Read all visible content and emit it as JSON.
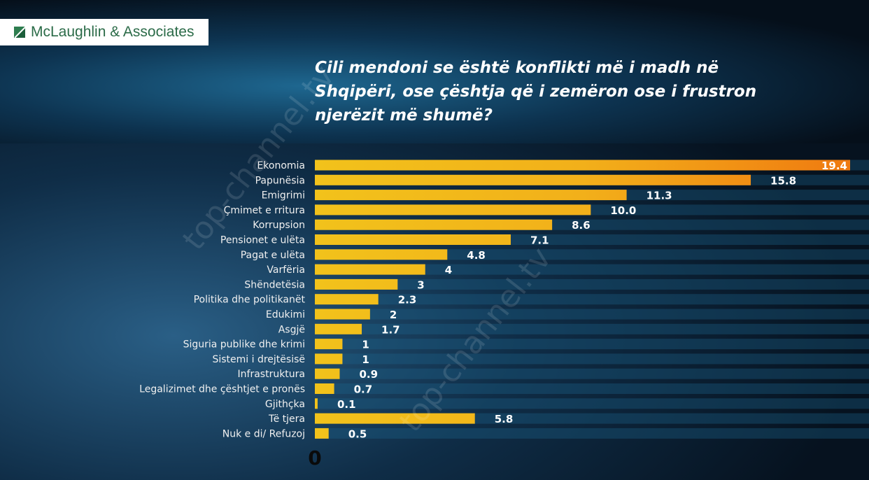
{
  "logo": {
    "text": "McLaughlin & Associates",
    "brand_color": "#2b6b48"
  },
  "title_lines": [
    "Cili mendoni se është konflikti më i madh në",
    "Shqipëri, ose çështja që i zemëron ose i frustron",
    "njerëzit më shumë?"
  ],
  "watermark": "top-channel.tv",
  "chart_data": {
    "type": "bar",
    "orientation": "horizontal",
    "title": "Cili mendoni se është konflikti më i madh në Shqipëri, ose çështja që i zemëron ose i frustron njerëzit më shumë?",
    "categories": [
      "Ekonomia",
      "Papunësia",
      "Emigrimi",
      "Çmimet e rritura",
      "Korrupsion",
      "Pensionet e ulëta",
      "Pagat e ulëta",
      "Varfëria",
      "Shëndetësia",
      "Politika dhe politikanët",
      "Edukimi",
      "Asgjë",
      "Siguria publike dhe krimi",
      "Sistemi i drejtësisë",
      "Infrastruktura",
      "Legalizimet dhe çështjet e pronës",
      "Gjithçka",
      "Të tjera",
      "Nuk e di/ Refuzoj"
    ],
    "values": [
      19.4,
      15.8,
      11.3,
      10.0,
      8.6,
      7.1,
      4.8,
      4,
      3,
      2.3,
      2,
      1.7,
      1,
      1,
      0.9,
      0.7,
      0.1,
      5.8,
      0.5
    ],
    "data_labels": [
      "19.4",
      "15.8",
      "11.3",
      "10.0",
      "8.6",
      "7.1",
      "4.8",
      "4",
      "3",
      "2.3",
      "2",
      "1.7",
      "1",
      "1",
      "0.9",
      "0.7",
      "0.1",
      "5.8",
      "0.5"
    ],
    "x_tick_labels": [
      "0"
    ],
    "xlim": [
      0,
      19.4
    ],
    "bar_colors": {
      "low": "#f2c21b",
      "high": "#f07a10"
    }
  }
}
